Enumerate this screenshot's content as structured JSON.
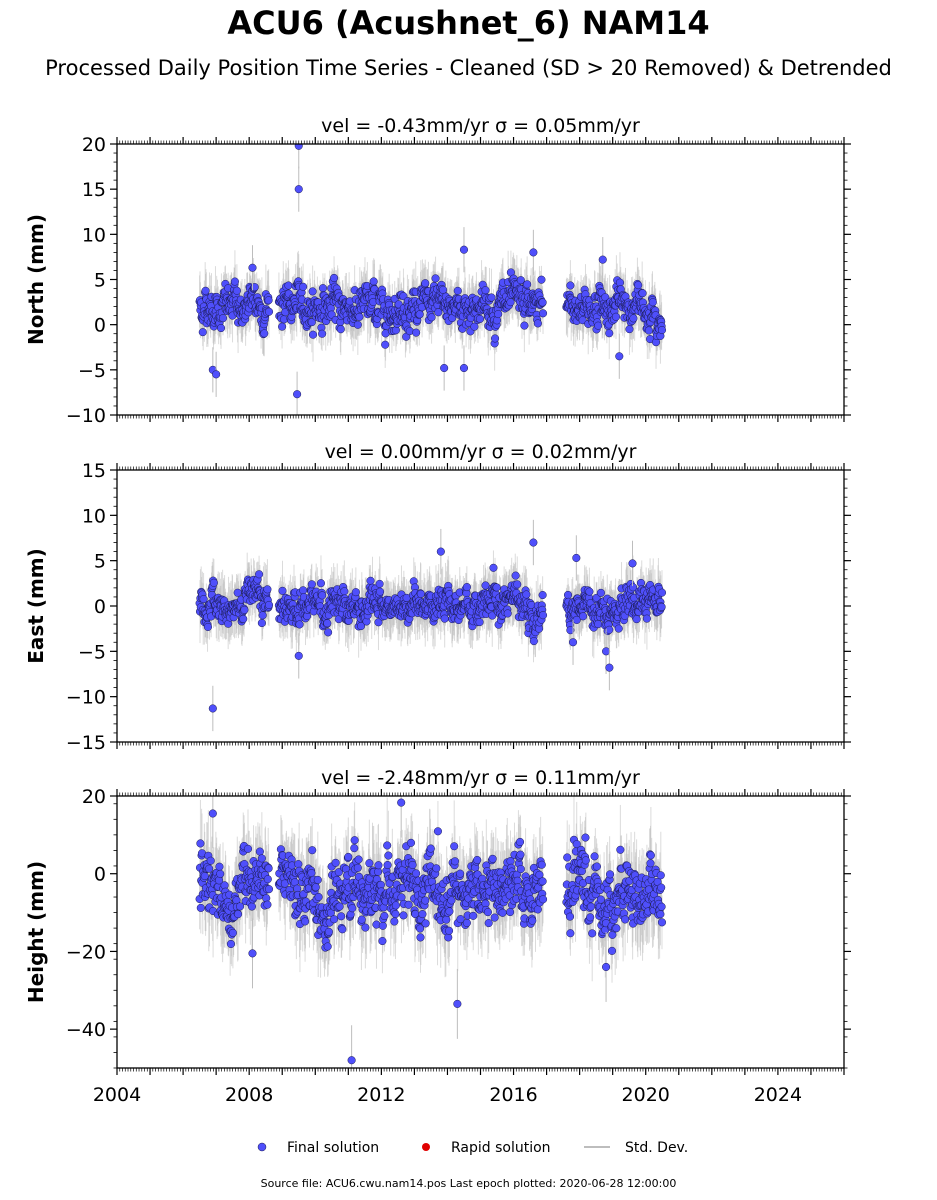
{
  "title": "ACU6 (Acushnet_6) NAM14",
  "subtitle": "Processed Daily Position Time Series - Cleaned (SD > 20 Removed) & Detrended",
  "source_line": "Source file: ACU6.cwu.nam14.pos  Last epoch plotted: 2020-06-28 12:00:00",
  "colors": {
    "final_solution": "#4f4ffb",
    "final_edge": "#1a1a4d",
    "rapid_solution": "#e00000",
    "std_dev": "#bdbdbd"
  },
  "legend": [
    {
      "label": "Final solution",
      "marker": "circle",
      "color": "#4f4ffb"
    },
    {
      "label": "Rapid solution",
      "marker": "circle",
      "color": "#e00000"
    },
    {
      "label": "Std. Dev.",
      "marker": "line",
      "color": "#bdbdbd"
    }
  ],
  "chart_data": [
    {
      "type": "scatter",
      "title": "vel = -0.43mm/yr   σ = 0.05mm/yr",
      "ylabel": "North (mm)",
      "xlim": [
        2004,
        2026
      ],
      "ylim": [
        -10,
        20
      ],
      "yticks": [
        -10,
        -5,
        0,
        5,
        10,
        15,
        20
      ],
      "xticks": [
        2004,
        2008,
        2012,
        2016,
        2020,
        2024
      ],
      "grid": false,
      "series": [
        {
          "name": "Final solution",
          "segments": [
            [
              2006.5,
              2008.6
            ],
            [
              2008.9,
              2016.9
            ],
            [
              2017.6,
              2020.5
            ]
          ],
          "center": 2.0,
          "spread": 1.5,
          "error_bar": 2.5,
          "x": [
            2006.9,
            2007.0,
            2008.1,
            2009.5,
            2009.5,
            2009.45,
            2014.5,
            2014.5,
            2016.6,
            2013.9,
            2018.7,
            2019.2
          ],
          "y": [
            -5.0,
            -5.5,
            6.3,
            19.8,
            15.0,
            -7.7,
            8.3,
            -4.8,
            8.0,
            -4.8,
            7.2,
            -3.5
          ]
        }
      ]
    },
    {
      "type": "scatter",
      "title": "vel = 0.00mm/yr   σ = 0.02mm/yr",
      "ylabel": "East (mm)",
      "xlim": [
        2004,
        2026
      ],
      "ylim": [
        -15,
        15
      ],
      "yticks": [
        -15,
        -10,
        -5,
        0,
        5,
        10,
        15
      ],
      "xticks": [
        2004,
        2008,
        2012,
        2016,
        2020,
        2024
      ],
      "grid": false,
      "series": [
        {
          "name": "Final solution",
          "segments": [
            [
              2006.5,
              2008.6
            ],
            [
              2008.9,
              2016.9
            ],
            [
              2017.6,
              2020.5
            ]
          ],
          "center": 0.0,
          "spread": 1.3,
          "error_bar": 2.5,
          "x": [
            2006.9,
            2009.5,
            2013.8,
            2016.6,
            2017.9,
            2018.8,
            2018.9,
            2017.8,
            2019.6
          ],
          "y": [
            -11.3,
            -5.5,
            6.0,
            7.0,
            5.3,
            -5.0,
            -6.8,
            -4.0,
            4.7
          ]
        }
      ]
    },
    {
      "type": "scatter",
      "title": "vel = -2.48mm/yr   σ = 0.11mm/yr",
      "ylabel": "Height (mm)",
      "xlim": [
        2004,
        2026
      ],
      "ylim": [
        -50,
        20
      ],
      "yticks": [
        -40,
        -20,
        0,
        20
      ],
      "xticks": [
        2004,
        2008,
        2012,
        2016,
        2020,
        2024
      ],
      "xticklabels": [
        "2004",
        "2008",
        "2012",
        "2016",
        "2020",
        "2024"
      ],
      "grid": false,
      "series": [
        {
          "name": "Final solution",
          "segments": [
            [
              2006.5,
              2008.6
            ],
            [
              2008.9,
              2016.9
            ],
            [
              2017.6,
              2020.5
            ]
          ],
          "center": -5.0,
          "spread": 6.0,
          "error_bar": 9.0,
          "x": [
            2011.1,
            2014.3,
            2006.9,
            2012.6,
            2008.1,
            2018.8
          ],
          "y": [
            -48.0,
            -33.5,
            15.5,
            18.3,
            -20.5,
            -24.0
          ]
        }
      ]
    }
  ]
}
